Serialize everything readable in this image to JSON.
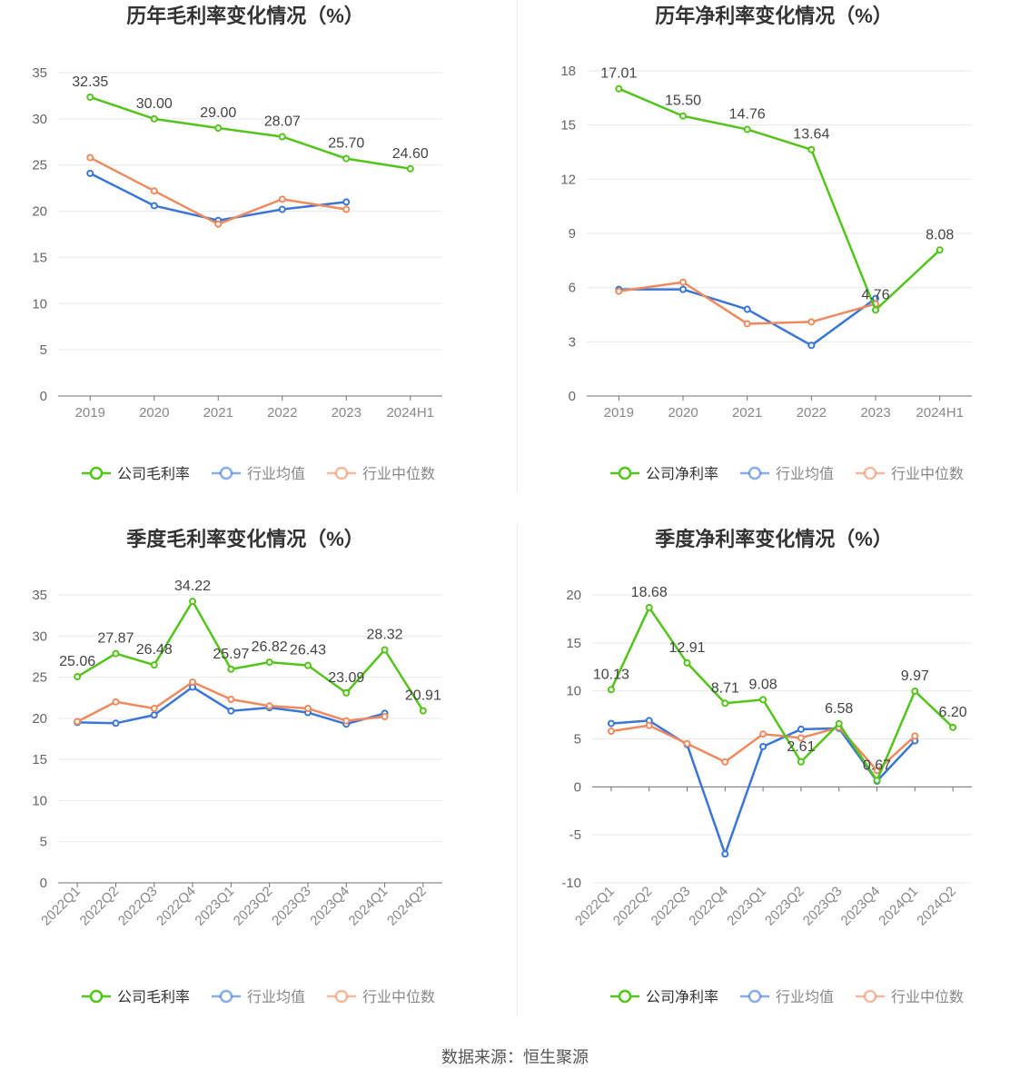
{
  "chart_data": [
    {
      "type": "line",
      "title": "历年毛利率变化情况（%）",
      "x": [
        "2019",
        "2020",
        "2021",
        "2022",
        "2023",
        "2024H1"
      ],
      "ylim": [
        0,
        35
      ],
      "yticks": [
        0,
        5,
        10,
        15,
        20,
        25,
        30,
        35
      ],
      "rotate_x_labels": false,
      "label_series": 0,
      "series": [
        {
          "name": "公司毛利率",
          "color": "#52c41a",
          "values": [
            32.35,
            30.0,
            29.0,
            28.07,
            25.7,
            24.6
          ],
          "labels": [
            "32.35",
            "30.00",
            "29.00",
            "28.07",
            "25.70",
            "24.60"
          ]
        },
        {
          "name": "行业均值",
          "color": "#3a76d8",
          "values": [
            24.1,
            20.6,
            19.0,
            20.2,
            21.0,
            null
          ]
        },
        {
          "name": "行业中位数",
          "color": "#f08a5d",
          "values": [
            25.8,
            22.2,
            18.6,
            21.3,
            20.2,
            null
          ]
        }
      ],
      "legend_position": "bottom"
    },
    {
      "type": "line",
      "title": "历年净利率变化情况（%）",
      "x": [
        "2019",
        "2020",
        "2021",
        "2022",
        "2023",
        "2024H1"
      ],
      "ylim": [
        0,
        18
      ],
      "yticks": [
        0,
        3,
        6,
        9,
        12,
        15,
        18
      ],
      "rotate_x_labels": false,
      "label_series": 0,
      "series": [
        {
          "name": "公司净利率",
          "color": "#52c41a",
          "values": [
            17.01,
            15.5,
            14.76,
            13.64,
            4.76,
            8.08
          ],
          "labels": [
            "17.01",
            "15.50",
            "14.76",
            "13.64",
            "4.76",
            "8.08"
          ]
        },
        {
          "name": "行业均值",
          "color": "#3a76d8",
          "values": [
            5.9,
            5.9,
            4.8,
            2.8,
            5.4,
            null
          ]
        },
        {
          "name": "行业中位数",
          "color": "#f08a5d",
          "values": [
            5.8,
            6.3,
            4.0,
            4.1,
            5.1,
            null
          ]
        }
      ],
      "legend_position": "bottom"
    },
    {
      "type": "line",
      "title": "季度毛利率变化情况（%）",
      "x": [
        "2022Q1",
        "2022Q2",
        "2022Q3",
        "2022Q4",
        "2023Q1",
        "2023Q2",
        "2023Q3",
        "2023Q4",
        "2024Q1",
        "2024Q2"
      ],
      "ylim": [
        0,
        35
      ],
      "yticks": [
        0,
        5,
        10,
        15,
        20,
        25,
        30,
        35
      ],
      "rotate_x_labels": true,
      "label_series": 0,
      "series": [
        {
          "name": "公司毛利率",
          "color": "#52c41a",
          "values": [
            25.06,
            27.87,
            26.48,
            34.22,
            25.97,
            26.82,
            26.43,
            23.09,
            28.32,
            20.91
          ],
          "labels": [
            "25.06",
            "27.87",
            "26.48",
            "34.22",
            "25.97",
            "26.82",
            "26.43",
            "23.09",
            "28.32",
            "20.91"
          ]
        },
        {
          "name": "行业均值",
          "color": "#3a76d8",
          "values": [
            19.5,
            19.4,
            20.4,
            23.8,
            20.9,
            21.3,
            20.7,
            19.3,
            20.6,
            null
          ]
        },
        {
          "name": "行业中位数",
          "color": "#f08a5d",
          "values": [
            19.6,
            22.0,
            21.2,
            24.4,
            22.3,
            21.5,
            21.2,
            19.7,
            20.2,
            null
          ]
        }
      ],
      "legend_position": "bottom"
    },
    {
      "type": "line",
      "title": "季度净利率变化情况（%）",
      "x": [
        "2022Q1",
        "2022Q2",
        "2022Q3",
        "2022Q4",
        "2023Q1",
        "2023Q2",
        "2023Q3",
        "2023Q4",
        "2024Q1",
        "2024Q2"
      ],
      "ylim": [
        -10,
        20
      ],
      "yticks": [
        -10,
        -5,
        0,
        5,
        10,
        15,
        20
      ],
      "rotate_x_labels": true,
      "label_series": 0,
      "series": [
        {
          "name": "公司净利率",
          "color": "#52c41a",
          "values": [
            10.13,
            18.68,
            12.91,
            8.71,
            9.08,
            2.61,
            6.58,
            0.67,
            9.97,
            6.2
          ],
          "labels": [
            "10.13",
            "18.68",
            "12.91",
            "8.71",
            "9.08",
            "2.61",
            "6.58",
            "0.67",
            "9.97",
            "6.20"
          ]
        },
        {
          "name": "行业均值",
          "color": "#3a76d8",
          "values": [
            6.6,
            6.9,
            4.4,
            -7.0,
            4.2,
            6.0,
            6.1,
            0.6,
            4.8,
            null
          ]
        },
        {
          "name": "行业中位数",
          "color": "#f08a5d",
          "values": [
            5.8,
            6.4,
            4.5,
            2.6,
            5.5,
            5.1,
            6.2,
            1.7,
            5.3,
            null
          ]
        }
      ],
      "legend_position": "bottom"
    }
  ],
  "footer": {
    "source": "数据来源：恒生聚源"
  }
}
